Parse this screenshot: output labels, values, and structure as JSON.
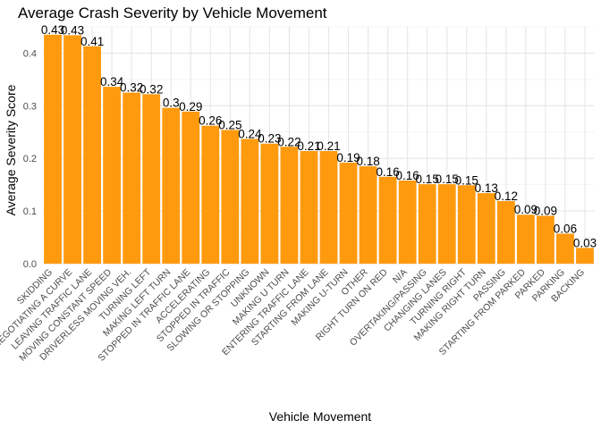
{
  "chart_data": {
    "type": "bar",
    "title": "Average Crash Severity by Vehicle Movement",
    "xlabel": "Vehicle Movement",
    "ylabel": "Average Severity Score",
    "ylim": [
      0,
      0.45
    ],
    "yticks": [
      0.0,
      0.1,
      0.2,
      0.3,
      0.4
    ],
    "ytick_labels": [
      "0.0",
      "0.1",
      "0.2",
      "0.3",
      "0.4"
    ],
    "grid": true,
    "bar_color": "#ff9a0f",
    "categories": [
      "SKIDDING",
      "NEGOTIATING A CURVE",
      "LEAVING TRAFFIC LANE",
      "MOVING CONSTANT SPEED",
      "DRIVERLESS MOVING VEH.",
      "TURNING LEFT",
      "MAKING LEFT TURN",
      "STOPPED IN TRAFFIC LANE",
      "ACCELERATING",
      "STOPPED IN TRAFFIC",
      "SLOWING OR STOPPING",
      "UNKNOWN",
      "MAKING U TURN",
      "ENTERING TRAFFIC LANE",
      "STARTING FROM LANE",
      "MAKING U-TURN",
      "OTHER",
      "RIGHT TURN ON RED",
      "N/A",
      "OVERTAKING/PASSING",
      "CHANGING LANES",
      "TURNING RIGHT",
      "MAKING RIGHT TURN",
      "PASSING",
      "STARTING FROM PARKED",
      "PARKED",
      "PARKING",
      "BACKING"
    ],
    "values": [
      0.435,
      0.434,
      0.413,
      0.336,
      0.325,
      0.322,
      0.296,
      0.289,
      0.262,
      0.254,
      0.237,
      0.228,
      0.222,
      0.214,
      0.214,
      0.192,
      0.185,
      0.165,
      0.158,
      0.151,
      0.151,
      0.149,
      0.134,
      0.119,
      0.093,
      0.091,
      0.057,
      0.03
    ],
    "data_labels": [
      "0.43",
      "0.43",
      "0.41",
      "0.34",
      "0.32",
      "0.32",
      "0.3",
      "0.29",
      "0.26",
      "0.25",
      "0.24",
      "0.23",
      "0.22",
      "0.21",
      "0.21",
      "0.19",
      "0.18",
      "0.16",
      "0.16",
      "0.15",
      "0.15",
      "0.15",
      "0.13",
      "0.12",
      "0.09",
      "0.09",
      "0.06",
      "0.03"
    ]
  }
}
